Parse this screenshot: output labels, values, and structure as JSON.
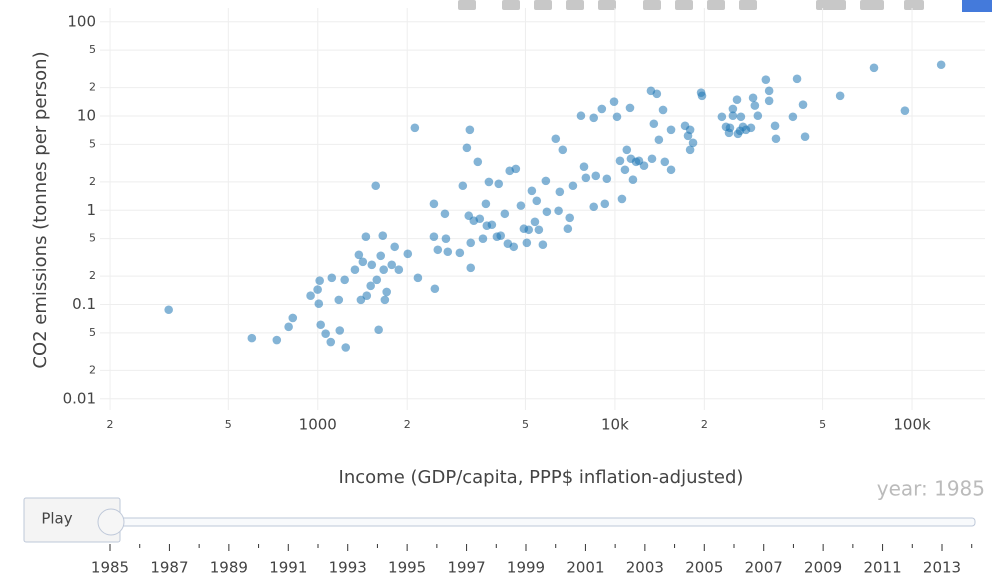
{
  "chart_data": {
    "type": "scatter",
    "x_label": "Income (GDP/capita, PPP$ inflation-adjusted)",
    "y_label": "CO2 emissions (tonnes per person)",
    "xscale": "log",
    "yscale": "log",
    "grid": true,
    "color": "#1f77b4",
    "opacity": 0.55,
    "xlim": [
      185,
      176000
    ],
    "ylim": [
      0.0076,
      140
    ],
    "xticks": [
      {
        "value": 200,
        "label": "2"
      },
      {
        "value": 500,
        "label": "5"
      },
      1000,
      {
        "value": 2000,
        "label": "2"
      },
      {
        "value": 5000,
        "label": "5"
      },
      {
        "value": 10000,
        "label": "10k"
      },
      {
        "value": 20000,
        "label": "2"
      },
      {
        "value": 50000,
        "label": "5"
      },
      {
        "value": 100000,
        "label": "100k"
      }
    ],
    "yticks": [
      0.01,
      {
        "value": 0.02,
        "label": "2"
      },
      {
        "value": 0.05,
        "label": "5"
      },
      0.1,
      {
        "value": 0.2,
        "label": "2"
      },
      {
        "value": 0.5,
        "label": "5"
      },
      1,
      2,
      5,
      10,
      {
        "value": 20,
        "label": "2"
      },
      {
        "value": 50,
        "label": "5"
      },
      100
    ],
    "x": [
      315,
      600,
      728,
      798,
      824,
      946,
      999,
      1015,
      1008,
      1023,
      1063,
      1106,
      1115,
      1177,
      1186,
      1242,
      1232,
      1334,
      1375,
      1418,
      1397,
      1452,
      1507,
      1462,
      1567,
      1520,
      1603,
      1580,
      1629,
      1655,
      1682,
      1706,
      1667,
      1774,
      1815,
      1874,
      2009,
      2122,
      2173,
      2460,
      2460,
      2478,
      2535,
      2679,
      2700,
      2739,
      3007,
      3077,
      3176,
      3250,
      3222,
      3272,
      3272,
      3350,
      3456,
      3510,
      3597,
      3680,
      3707,
      3767,
      3855,
      4008,
      4065,
      4128,
      4261,
      4363,
      4426,
      4567,
      4641,
      4827,
      4939,
      5054,
      5129,
      5255,
      5381,
      5458,
      5548,
      5723,
      5857,
      5903,
      6324,
      6464,
      6526,
      6677,
      6944,
      7046,
      7223,
      7687,
      7870,
      7985,
      8486,
      8622,
      8486,
      9036,
      9247,
      9393,
      9933,
      10163,
      10401,
      10560,
      10808,
      10965,
      11240,
      11320,
      11500,
      11780,
      12050,
      12530,
      13220,
      13330,
      13520,
      13840,
      14060,
      14520,
      14720,
      15450,
      15450,
      17220,
      17620,
      17910,
      17910,
      18320,
      19500,
      19640,
      22910,
      23650,
      24210,
      24390,
      24950,
      24950,
      25760,
      25940,
      26360,
      26550,
      26980,
      27610,
      28700,
      29170,
      29580,
      30270,
      32210,
      33040,
      33040,
      34590,
      34840,
      39720,
      41020,
      42960,
      43650,
      57280,
      74470,
      94620,
      125300
    ],
    "y": [
      0.088,
      0.044,
      0.042,
      0.058,
      0.072,
      0.124,
      0.144,
      0.179,
      0.102,
      0.061,
      0.049,
      0.04,
      0.192,
      0.112,
      0.053,
      0.035,
      0.183,
      0.234,
      0.337,
      0.284,
      0.112,
      0.524,
      0.158,
      0.124,
      1.82,
      0.264,
      0.054,
      0.183,
      0.329,
      0.537,
      0.112,
      0.136,
      0.234,
      0.264,
      0.41,
      0.234,
      0.345,
      7.5,
      0.192,
      1.17,
      0.524,
      0.147,
      0.381,
      0.918,
      0.499,
      0.363,
      0.354,
      1.82,
      4.6,
      7.14,
      0.875,
      0.452,
      0.245,
      0.775,
      3.27,
      0.813,
      0.499,
      1.17,
      0.686,
      2.0,
      0.702,
      0.524,
      1.91,
      0.537,
      0.918,
      0.442,
      2.62,
      0.41,
      2.75,
      1.12,
      0.637,
      0.452,
      0.621,
      1.61,
      0.755,
      1.26,
      0.621,
      0.431,
      2.05,
      0.964,
      5.74,
      0.988,
      1.57,
      4.38,
      0.637,
      0.832,
      1.82,
      10.07,
      2.9,
      2.21,
      9.58,
      2.32,
      1.09,
      11.9,
      1.17,
      2.16,
      14.2,
      9.82,
      3.35,
      1.32,
      2.69,
      4.38,
      12.2,
      3.52,
      2.11,
      3.27,
      3.35,
      2.97,
      18.5,
      3.52,
      8.28,
      17.2,
      5.6,
      11.6,
      3.27,
      2.69,
      7.14,
      7.88,
      6.17,
      4.38,
      7.14,
      5.2,
      17.7,
      16.4,
      9.82,
      7.69,
      6.64,
      7.5,
      10.07,
      11.9,
      14.9,
      6.48,
      6.97,
      9.82,
      7.69,
      7.14,
      7.5,
      15.6,
      12.9,
      10.07,
      24.3,
      18.5,
      14.5,
      7.88,
      5.74,
      9.82,
      24.8,
      13.2,
      6.03,
      16.4,
      32.5,
      11.4,
      35.0
    ],
    "slider": {
      "button": "Play",
      "current_label": "year: 1985",
      "labels": [
        1985,
        1987,
        1989,
        1991,
        1993,
        1995,
        1997,
        1999,
        2001,
        2003,
        2005,
        2007,
        2009,
        2011,
        2013
      ]
    }
  }
}
